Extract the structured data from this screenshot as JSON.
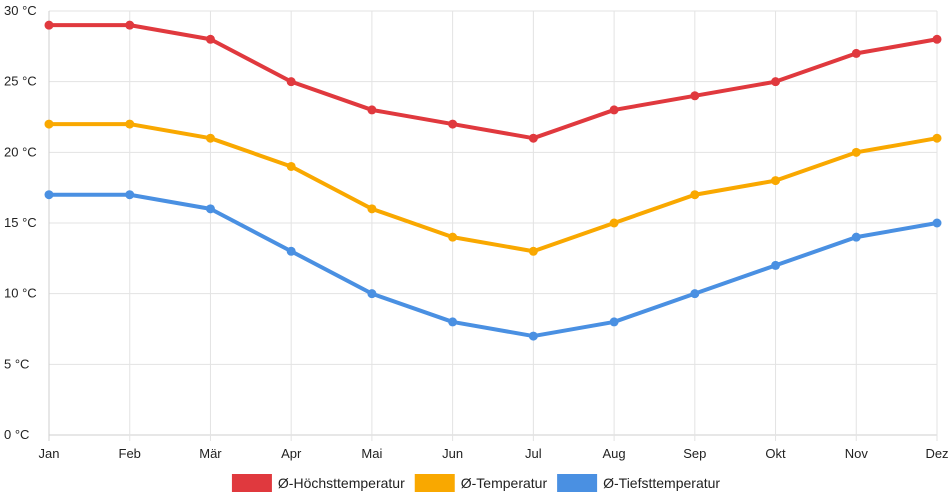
{
  "chart_data": {
    "type": "line",
    "title": "",
    "xlabel": "",
    "ylabel": "",
    "categories": [
      "Jan",
      "Feb",
      "Mär",
      "Apr",
      "Mai",
      "Jun",
      "Jul",
      "Aug",
      "Sep",
      "Okt",
      "Nov",
      "Dez"
    ],
    "ylim": [
      0,
      30
    ],
    "yticks": [
      0,
      5,
      10,
      15,
      20,
      25,
      30
    ],
    "y_unit": "°C",
    "grid": true,
    "legend_position": "bottom",
    "series": [
      {
        "name": "Ø-Höchsttemperatur",
        "color": "#e0393e",
        "values": [
          29,
          29,
          28,
          25,
          23,
          22,
          21,
          23,
          24,
          25,
          27,
          28
        ]
      },
      {
        "name": "Ø-Temperatur",
        "color": "#f9a800",
        "values": [
          22,
          22,
          21,
          19,
          16,
          14,
          13,
          15,
          17,
          18,
          20,
          21
        ]
      },
      {
        "name": "Ø-Tiefsttemperatur",
        "color": "#4a90e2",
        "values": [
          17,
          17,
          16,
          13,
          10,
          8,
          7,
          8,
          10,
          12,
          14,
          15
        ]
      }
    ]
  }
}
